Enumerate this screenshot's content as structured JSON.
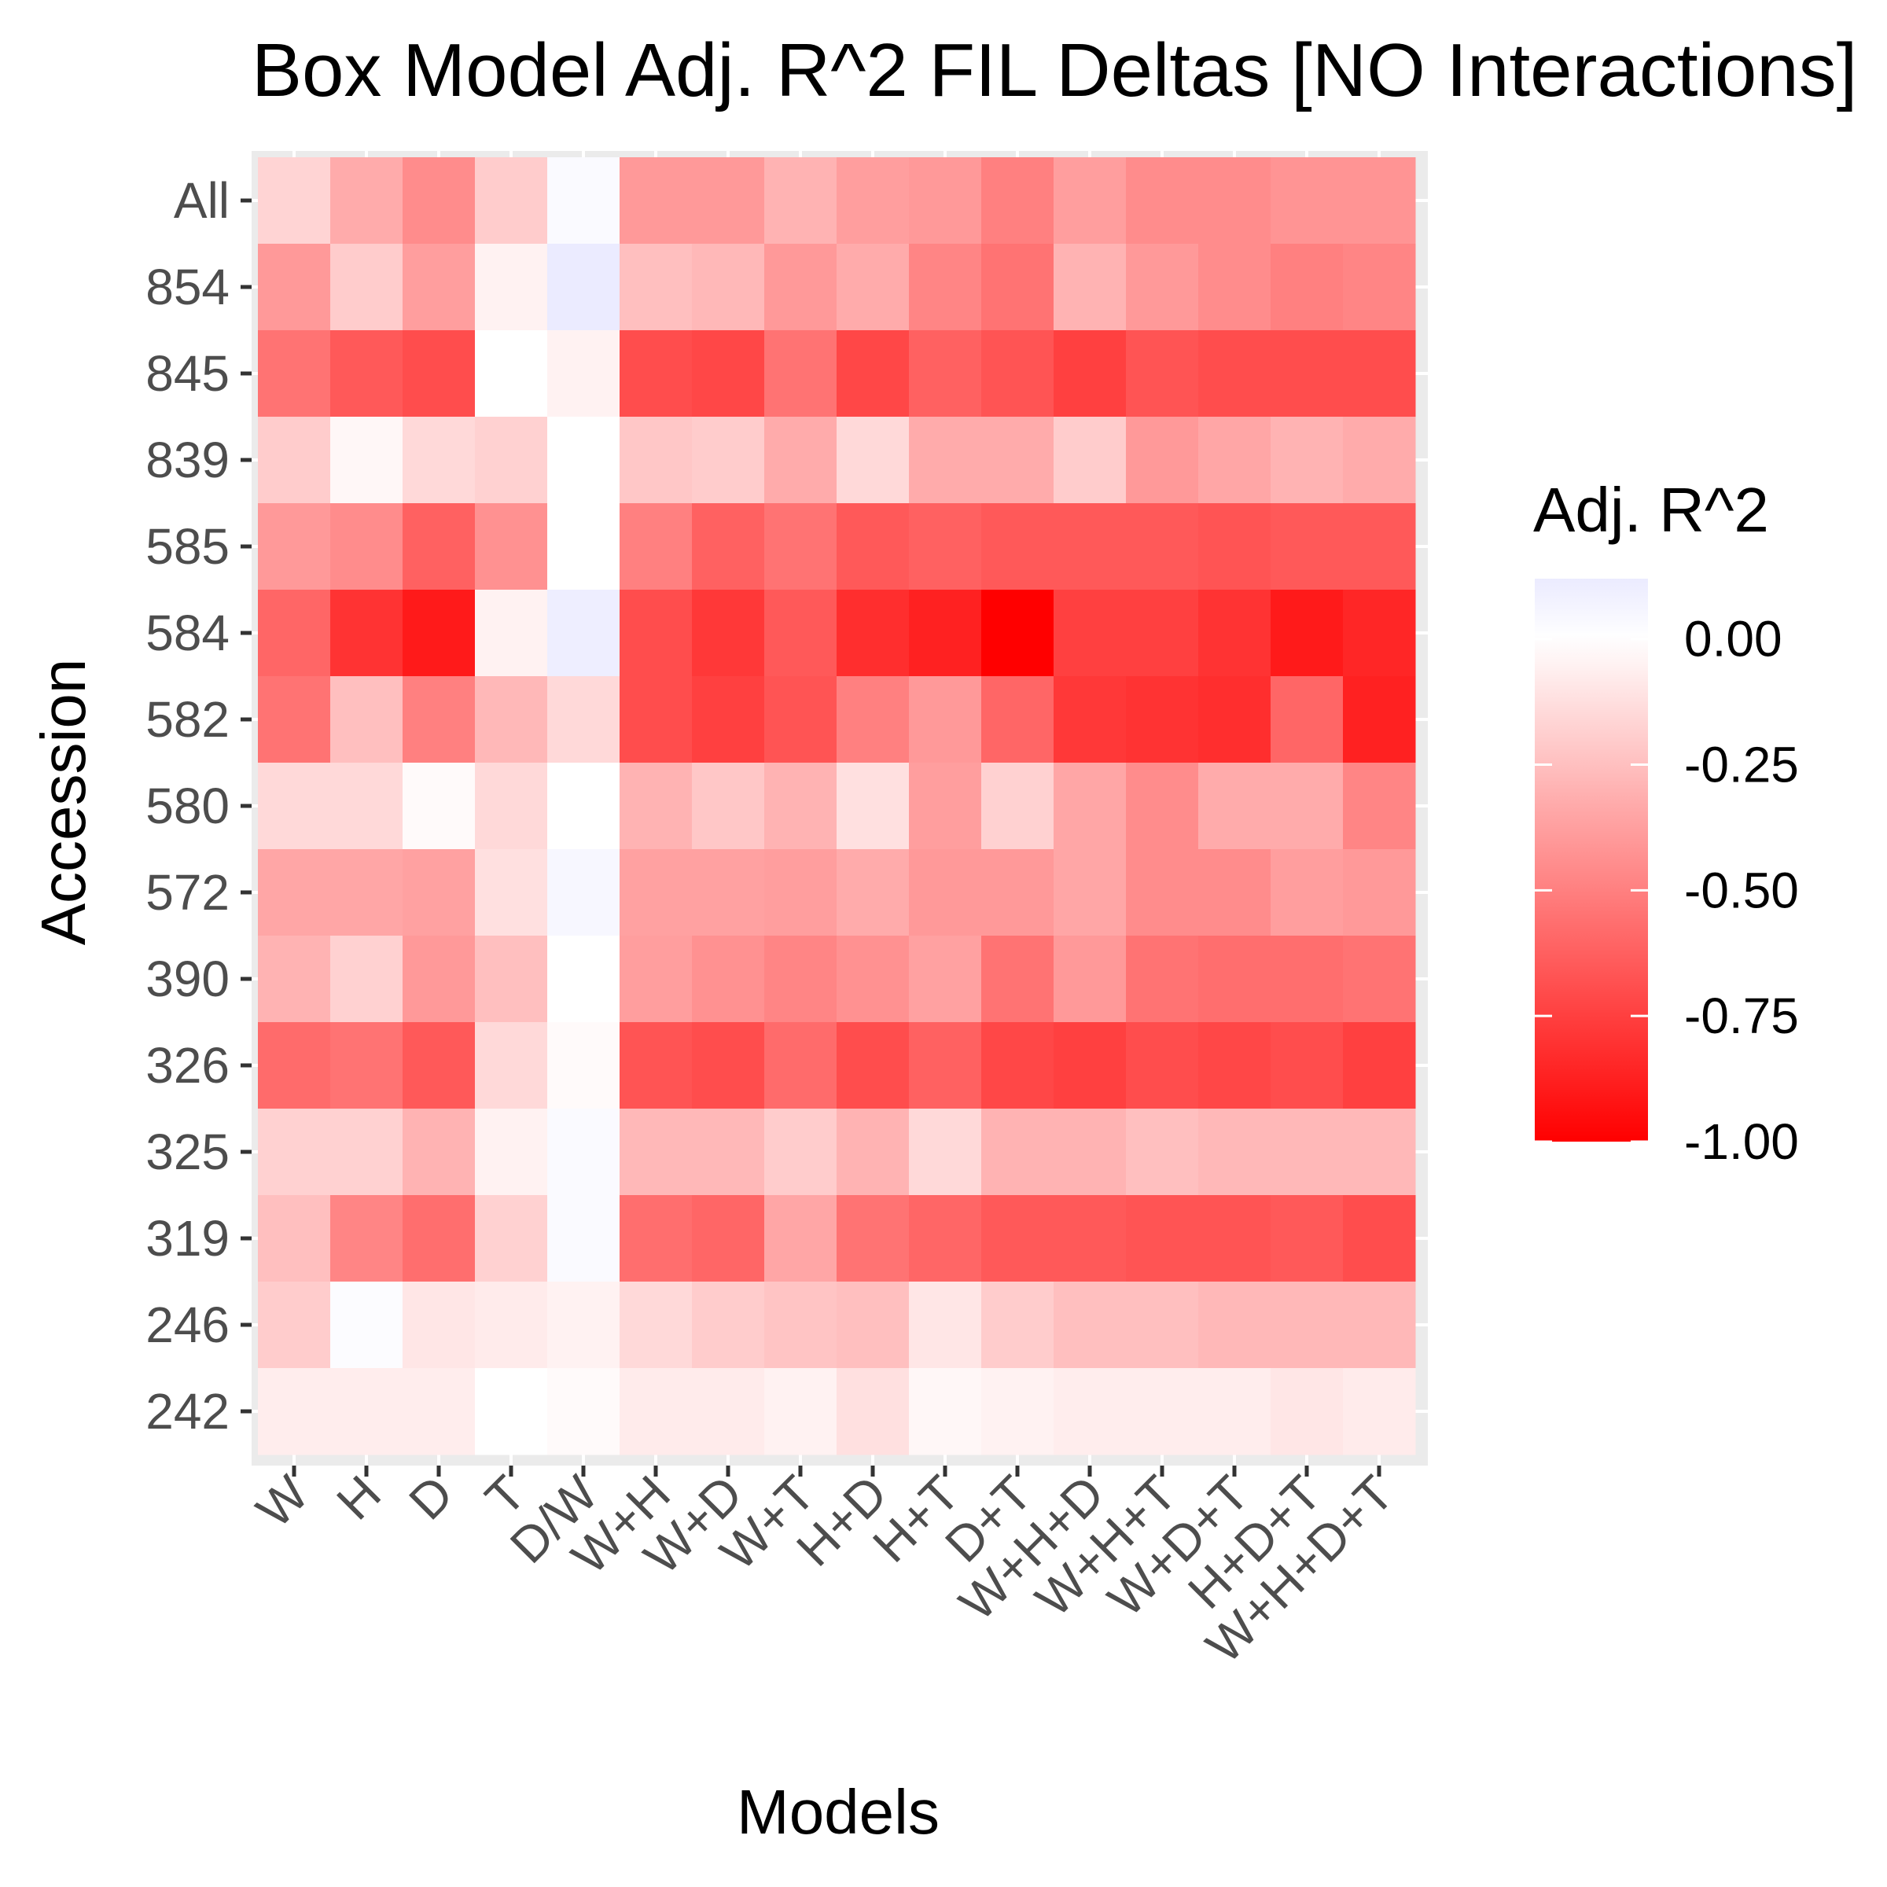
{
  "chart_data": {
    "type": "heatmap",
    "title": "Box Model Adj. R^2 FIL Deltas [NO Interactions]",
    "xlabel": "Models",
    "ylabel": "Accession",
    "x_categories": [
      "W",
      "H",
      "D",
      "T",
      "D/W",
      "W+H",
      "W+D",
      "W+T",
      "H+D",
      "H+T",
      "D+T",
      "W+H+D",
      "W+H+T",
      "W+D+T",
      "H+D+T",
      "W+H+D+T"
    ],
    "y_categories": [
      "All",
      "854",
      "845",
      "839",
      "585",
      "584",
      "582",
      "580",
      "572",
      "390",
      "326",
      "325",
      "319",
      "246",
      "242"
    ],
    "values": [
      [
        -0.17,
        -0.33,
        -0.45,
        -0.2,
        0.03,
        -0.4,
        -0.4,
        -0.3,
        -0.38,
        -0.4,
        -0.5,
        -0.38,
        -0.45,
        -0.45,
        -0.42,
        -0.42
      ],
      [
        -0.4,
        -0.2,
        -0.38,
        -0.05,
        0.12,
        -0.25,
        -0.28,
        -0.4,
        -0.33,
        -0.48,
        -0.55,
        -0.3,
        -0.4,
        -0.45,
        -0.5,
        -0.48
      ],
      [
        -0.55,
        -0.65,
        -0.7,
        0.0,
        -0.05,
        -0.7,
        -0.72,
        -0.55,
        -0.72,
        -0.62,
        -0.67,
        -0.75,
        -0.67,
        -0.7,
        -0.7,
        -0.7
      ],
      [
        -0.2,
        -0.03,
        -0.15,
        -0.18,
        0.0,
        -0.22,
        -0.2,
        -0.33,
        -0.15,
        -0.33,
        -0.33,
        -0.2,
        -0.4,
        -0.35,
        -0.3,
        -0.33
      ],
      [
        -0.4,
        -0.45,
        -0.62,
        -0.43,
        0.0,
        -0.5,
        -0.62,
        -0.55,
        -0.65,
        -0.62,
        -0.65,
        -0.65,
        -0.65,
        -0.67,
        -0.65,
        -0.65
      ],
      [
        -0.6,
        -0.8,
        -0.9,
        -0.05,
        0.1,
        -0.7,
        -0.78,
        -0.65,
        -0.82,
        -0.87,
        -1.0,
        -0.75,
        -0.75,
        -0.8,
        -0.9,
        -0.85
      ],
      [
        -0.55,
        -0.25,
        -0.5,
        -0.28,
        -0.15,
        -0.7,
        -0.75,
        -0.67,
        -0.5,
        -0.4,
        -0.6,
        -0.78,
        -0.8,
        -0.82,
        -0.6,
        -0.87
      ],
      [
        -0.15,
        -0.15,
        -0.02,
        -0.15,
        0.0,
        -0.3,
        -0.22,
        -0.3,
        -0.12,
        -0.38,
        -0.18,
        -0.35,
        -0.45,
        -0.33,
        -0.33,
        -0.48
      ],
      [
        -0.35,
        -0.35,
        -0.37,
        -0.12,
        0.05,
        -0.37,
        -0.37,
        -0.38,
        -0.33,
        -0.4,
        -0.4,
        -0.35,
        -0.45,
        -0.45,
        -0.38,
        -0.4
      ],
      [
        -0.3,
        -0.18,
        -0.4,
        -0.25,
        0.0,
        -0.38,
        -0.43,
        -0.48,
        -0.43,
        -0.37,
        -0.55,
        -0.4,
        -0.55,
        -0.57,
        -0.57,
        -0.55
      ],
      [
        -0.58,
        -0.55,
        -0.65,
        -0.15,
        -0.02,
        -0.67,
        -0.7,
        -0.58,
        -0.7,
        -0.62,
        -0.72,
        -0.75,
        -0.7,
        -0.72,
        -0.7,
        -0.75
      ],
      [
        -0.18,
        -0.18,
        -0.3,
        -0.05,
        0.03,
        -0.28,
        -0.28,
        -0.2,
        -0.3,
        -0.15,
        -0.3,
        -0.3,
        -0.25,
        -0.28,
        -0.28,
        -0.28
      ],
      [
        -0.25,
        -0.48,
        -0.57,
        -0.18,
        0.03,
        -0.57,
        -0.6,
        -0.35,
        -0.55,
        -0.6,
        -0.65,
        -0.65,
        -0.67,
        -0.67,
        -0.65,
        -0.7
      ],
      [
        -0.2,
        0.02,
        -0.1,
        -0.08,
        -0.05,
        -0.15,
        -0.2,
        -0.23,
        -0.25,
        -0.1,
        -0.2,
        -0.25,
        -0.25,
        -0.28,
        -0.28,
        -0.28
      ],
      [
        -0.07,
        -0.07,
        -0.07,
        0.0,
        -0.02,
        -0.08,
        -0.08,
        -0.05,
        -0.12,
        -0.03,
        -0.05,
        -0.07,
        -0.07,
        -0.07,
        -0.1,
        -0.08
      ]
    ],
    "legend": {
      "title": "Adj. R^2",
      "breaks": [
        0.0,
        -0.25,
        -0.5,
        -0.75,
        -1.0
      ],
      "labels": [
        "0.00",
        "-0.25",
        "-0.50",
        "-0.75",
        "-1.00"
      ],
      "range": [
        -1.0,
        0.12
      ],
      "placement": "right"
    },
    "colors": {
      "low": "#ff0000",
      "mid": "#ffffff",
      "high": "#ebebff",
      "panel_background": "#ebebeb",
      "grid": "#ffffff"
    }
  }
}
